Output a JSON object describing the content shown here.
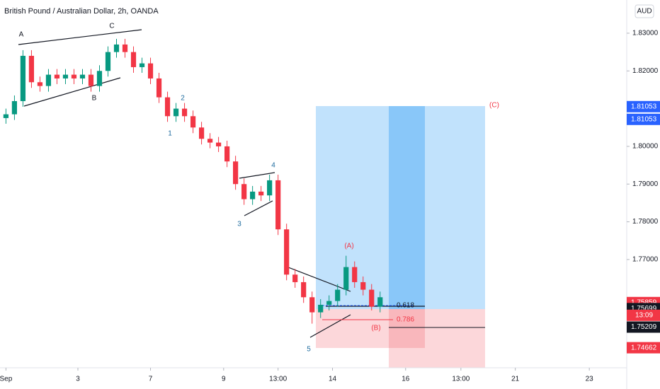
{
  "chart_data": {
    "type": "candlestick",
    "title": "British Pound / Australian Dollar, 2h, OANDA",
    "currency": "AUD",
    "up_color": "#089981",
    "down_color": "#f23645",
    "open": [
      1.8075,
      1.8085,
      1.812,
      1.824,
      1.817,
      1.816,
      1.819,
      1.818,
      1.819,
      1.818,
      1.819,
      1.816,
      1.82,
      1.825,
      1.827,
      1.825,
      1.821,
      1.822,
      1.818,
      1.813,
      1.808,
      1.81,
      1.808,
      1.805,
      1.802,
      1.801,
      1.8,
      1.796,
      1.79,
      1.786,
      1.788,
      1.787,
      1.791,
      1.778,
      1.766,
      1.764,
      1.76,
      1.756,
      1.758,
      1.759,
      1.762,
      1.768,
      1.764,
      1.762,
      1.7575
    ],
    "high": [
      1.81,
      1.8135,
      1.8255,
      1.8255,
      1.8185,
      1.8205,
      1.8205,
      1.8205,
      1.8205,
      1.8205,
      1.8205,
      1.8215,
      1.8265,
      1.8285,
      1.8285,
      1.8265,
      1.8235,
      1.8235,
      1.8195,
      1.8145,
      1.8115,
      1.8115,
      1.8095,
      1.8065,
      1.8035,
      1.8025,
      1.8015,
      1.7975,
      1.7915,
      1.7895,
      1.7895,
      1.7925,
      1.7925,
      1.7795,
      1.7675,
      1.7655,
      1.7615,
      1.7595,
      1.7605,
      1.7635,
      1.771,
      1.7695,
      1.7655,
      1.7635,
      1.7615
    ],
    "low": [
      1.806,
      1.807,
      1.8105,
      1.8155,
      1.8145,
      1.8145,
      1.8165,
      1.8165,
      1.8165,
      1.8165,
      1.8145,
      1.8145,
      1.8185,
      1.8235,
      1.8235,
      1.8195,
      1.8195,
      1.8165,
      1.8115,
      1.8065,
      1.8065,
      1.8065,
      1.8035,
      1.8005,
      1.7995,
      1.7985,
      1.7945,
      1.7885,
      1.7845,
      1.7845,
      1.7855,
      1.7855,
      1.7765,
      1.7645,
      1.7625,
      1.7585,
      1.753,
      1.7545,
      1.7565,
      1.7575,
      1.7605,
      1.7625,
      1.7605,
      1.7565,
      1.756
    ],
    "close": [
      1.8085,
      1.812,
      1.824,
      1.817,
      1.816,
      1.819,
      1.818,
      1.819,
      1.818,
      1.819,
      1.816,
      1.82,
      1.825,
      1.827,
      1.825,
      1.821,
      1.822,
      1.818,
      1.813,
      1.808,
      1.81,
      1.808,
      1.805,
      1.802,
      1.801,
      1.8,
      1.796,
      1.79,
      1.786,
      1.788,
      1.787,
      1.791,
      1.778,
      1.766,
      1.764,
      1.76,
      1.756,
      1.758,
      1.759,
      1.762,
      1.768,
      1.764,
      1.762,
      1.7575,
      1.76
    ],
    "xlim": [
      -0.7,
      73
    ],
    "xticks": [
      {
        "value": 0,
        "label": "Sep"
      },
      {
        "value": 8.46,
        "label": "3"
      },
      {
        "value": 17.0,
        "label": "7"
      },
      {
        "value": 25.6,
        "label": "9"
      },
      {
        "value": 32.0,
        "label": "13:00"
      },
      {
        "value": 38.4,
        "label": "14"
      },
      {
        "value": 47.0,
        "label": "16"
      },
      {
        "value": 53.5,
        "label": "13:00"
      },
      {
        "value": 59.9,
        "label": "21"
      },
      {
        "value": 68.6,
        "label": "23"
      }
    ],
    "ylim": [
      1.7413,
      1.8388
    ],
    "yticks": [
      {
        "value": 1.83,
        "label": "1.83000"
      },
      {
        "value": 1.82,
        "label": "1.82000"
      },
      {
        "value": 1.8,
        "label": "1.80000"
      },
      {
        "value": 1.79,
        "label": "1.79000"
      },
      {
        "value": 1.78,
        "label": "1.78000"
      },
      {
        "value": 1.77,
        "label": "1.77000"
      }
    ],
    "price_tags": [
      {
        "value": 1.81053,
        "color": "#2962ff"
      },
      {
        "value": 1.75859,
        "color": "#f23645"
      },
      {
        "value": 1.75699,
        "color": "#131722"
      },
      {
        "value": 1.75209,
        "color": "#131722"
      },
      {
        "value": 1.74662,
        "color": "#f23645"
      }
    ],
    "countdown": "13:09",
    "waves": [
      "1",
      "2",
      "3",
      "4",
      "5"
    ],
    "corrections": [
      "A",
      "B",
      "C"
    ],
    "abc_labels": [
      "(A)",
      "(B)",
      "(C)"
    ],
    "fib_levels": [
      0.618,
      0.786
    ]
  }
}
